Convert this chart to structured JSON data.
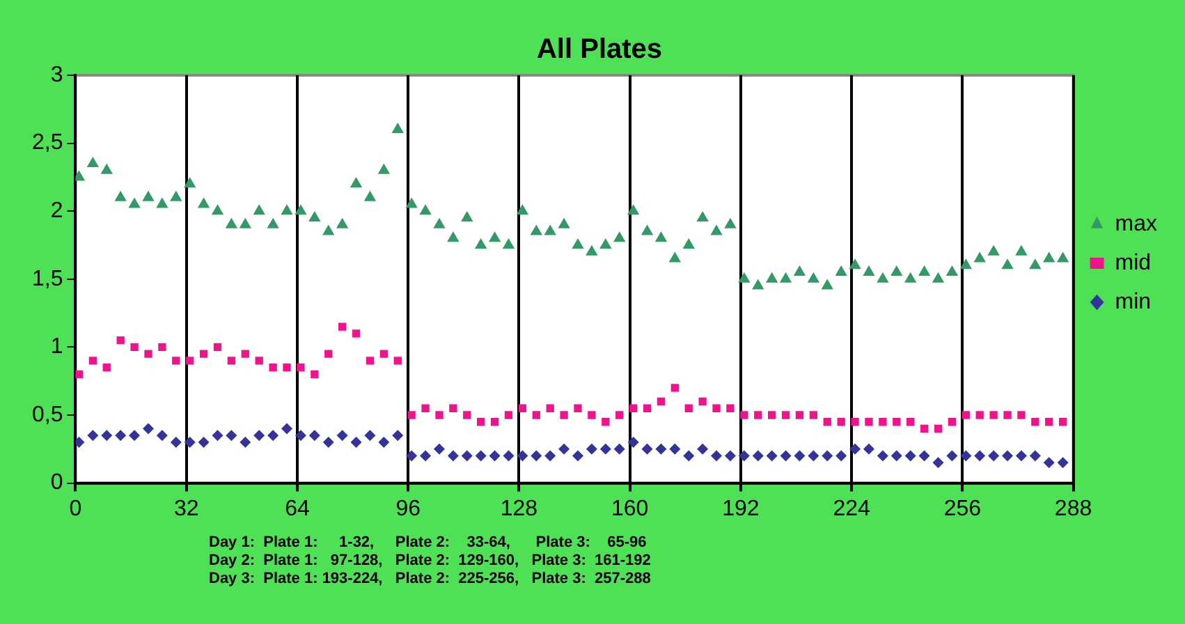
{
  "chart_data": {
    "type": "scatter",
    "title": "All Plates",
    "xlim": [
      0,
      288
    ],
    "xticks": [
      0,
      32,
      64,
      96,
      128,
      160,
      192,
      224,
      256,
      288
    ],
    "ylim": [
      0,
      3
    ],
    "yticks": [
      0,
      {
        "value": 0.5,
        "label": "0,5"
      },
      1,
      {
        "value": 1.5,
        "label": "1,5"
      },
      2,
      {
        "value": 2.5,
        "label": "2,5"
      },
      3
    ],
    "grid": "x",
    "legend": "right",
    "x": [
      1,
      5,
      9,
      13,
      17,
      21,
      25,
      29,
      33,
      37,
      41,
      45,
      49,
      53,
      57,
      61,
      65,
      69,
      73,
      77,
      81,
      85,
      89,
      93,
      97,
      101,
      105,
      109,
      113,
      117,
      121,
      125,
      129,
      133,
      137,
      141,
      145,
      149,
      153,
      157,
      161,
      165,
      169,
      173,
      177,
      181,
      185,
      189,
      193,
      197,
      201,
      205,
      209,
      213,
      217,
      221,
      225,
      229,
      233,
      237,
      241,
      245,
      249,
      253,
      257,
      261,
      265,
      269,
      273,
      277,
      281,
      285
    ],
    "series": [
      {
        "name": "max",
        "color": "#339966",
        "marker": "triangle",
        "values": [
          2.25,
          2.35,
          2.3,
          2.1,
          2.05,
          2.1,
          2.05,
          2.1,
          2.2,
          2.05,
          2.0,
          1.9,
          1.9,
          2.0,
          1.9,
          2.0,
          2.0,
          1.95,
          1.85,
          1.9,
          2.2,
          2.1,
          2.3,
          2.6,
          2.05,
          2.0,
          1.9,
          1.8,
          1.95,
          1.75,
          1.8,
          1.75,
          2.0,
          1.85,
          1.85,
          1.9,
          1.75,
          1.7,
          1.75,
          1.8,
          2.0,
          1.85,
          1.8,
          1.65,
          1.75,
          1.95,
          1.85,
          1.9,
          1.5,
          1.45,
          1.5,
          1.5,
          1.55,
          1.5,
          1.45,
          1.55,
          1.6,
          1.55,
          1.5,
          1.55,
          1.5,
          1.55,
          1.5,
          1.55,
          1.6,
          1.65,
          1.7,
          1.6,
          1.7,
          1.6,
          1.65,
          1.65
        ]
      },
      {
        "name": "mid",
        "color": "#f0148c",
        "marker": "square",
        "values": [
          0.8,
          0.9,
          0.85,
          1.05,
          1.0,
          0.95,
          1.0,
          0.9,
          0.9,
          0.95,
          1.0,
          0.9,
          0.95,
          0.9,
          0.85,
          0.85,
          0.85,
          0.8,
          0.95,
          1.15,
          1.1,
          0.9,
          0.95,
          0.9,
          0.5,
          0.55,
          0.5,
          0.55,
          0.5,
          0.45,
          0.45,
          0.5,
          0.55,
          0.5,
          0.55,
          0.5,
          0.55,
          0.5,
          0.45,
          0.5,
          0.55,
          0.55,
          0.6,
          0.7,
          0.55,
          0.6,
          0.55,
          0.55,
          0.5,
          0.5,
          0.5,
          0.5,
          0.5,
          0.5,
          0.45,
          0.45,
          0.45,
          0.45,
          0.45,
          0.45,
          0.45,
          0.4,
          0.4,
          0.45,
          0.5,
          0.5,
          0.5,
          0.5,
          0.5,
          0.45,
          0.45,
          0.45
        ]
      },
      {
        "name": "min",
        "color": "#333399",
        "marker": "diamond",
        "values": [
          0.3,
          0.35,
          0.35,
          0.35,
          0.35,
          0.4,
          0.35,
          0.3,
          0.3,
          0.3,
          0.35,
          0.35,
          0.3,
          0.35,
          0.35,
          0.4,
          0.35,
          0.35,
          0.3,
          0.35,
          0.3,
          0.35,
          0.3,
          0.35,
          0.2,
          0.2,
          0.25,
          0.2,
          0.2,
          0.2,
          0.2,
          0.2,
          0.2,
          0.2,
          0.2,
          0.25,
          0.2,
          0.25,
          0.25,
          0.25,
          0.3,
          0.25,
          0.25,
          0.25,
          0.2,
          0.25,
          0.2,
          0.2,
          0.2,
          0.2,
          0.2,
          0.2,
          0.2,
          0.2,
          0.2,
          0.2,
          0.25,
          0.25,
          0.2,
          0.2,
          0.2,
          0.2,
          0.15,
          0.2,
          0.2,
          0.2,
          0.2,
          0.2,
          0.2,
          0.2,
          0.15,
          0.15
        ]
      }
    ],
    "annotations": [
      "Day 1:  Plate 1:     1-32,     Plate 2:    33-64,      Plate 3:    65-96",
      "Day 2:  Plate 1:   97-128,   Plate 2:  129-160,   Plate 3:  161-192",
      "Day 3:  Plate 1: 193-224,   Plate 2:  225-256,   Plate 3:  257-288"
    ]
  }
}
